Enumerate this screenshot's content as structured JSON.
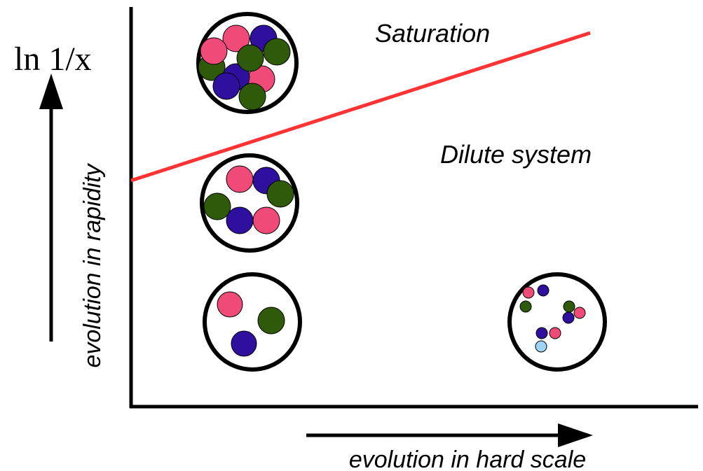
{
  "regions": {
    "saturation": "Saturation",
    "dilute": "Dilute system"
  },
  "y_axis": {
    "symbol": "ln 1/x",
    "label": "evolution in rapidity"
  },
  "x_axis": {
    "label": "evolution in hard scale"
  }
}
